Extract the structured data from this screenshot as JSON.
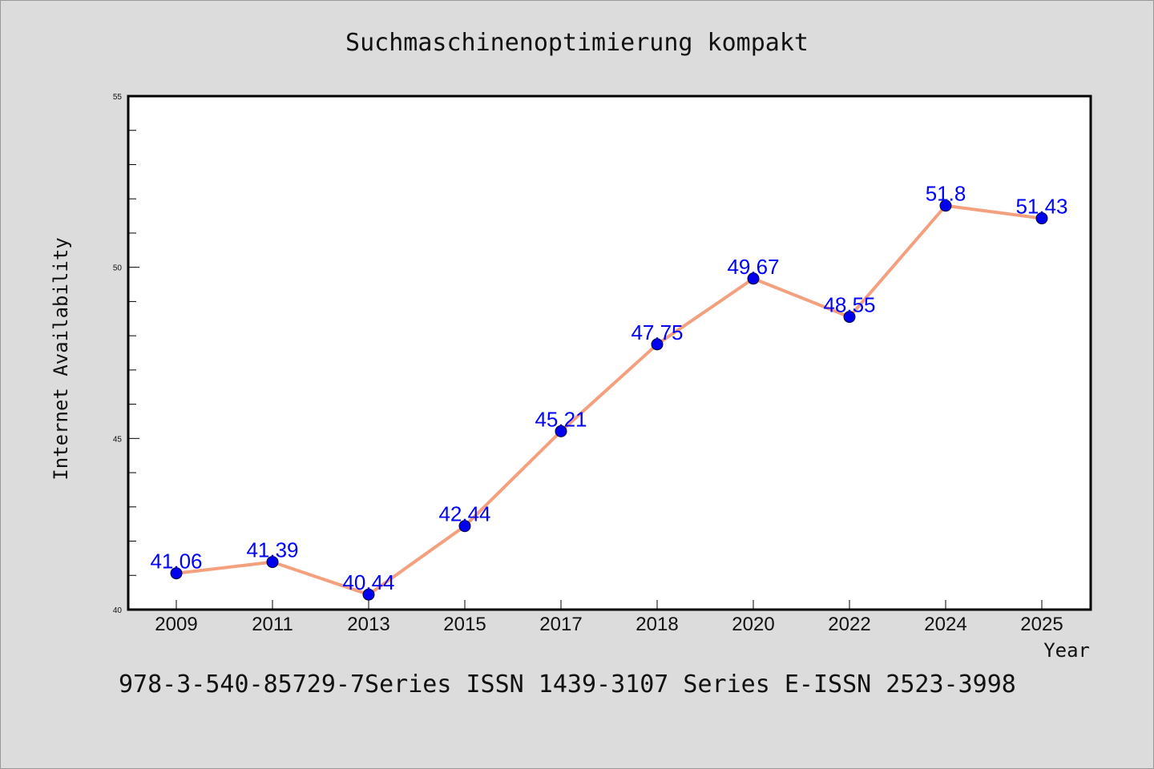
{
  "chart_data": {
    "type": "line",
    "title": "Suchmaschinenoptimierung kompakt",
    "xlabel": "Year",
    "ylabel": "Internet Availability",
    "categories": [
      "2009",
      "2011",
      "2013",
      "2015",
      "2017",
      "2018",
      "2020",
      "2022",
      "2024",
      "2025"
    ],
    "series": [
      {
        "values": [
          41.06,
          41.39,
          40.44,
          42.44,
          45.21,
          47.75,
          49.67,
          48.55,
          51.8,
          51.43
        ],
        "labels": [
          "41.06",
          "41.39",
          "40.44",
          "42.44",
          "45.21",
          "47.75",
          "49.67",
          "48.55",
          "51.8",
          "51.43"
        ]
      }
    ],
    "ylim": [
      40,
      55
    ],
    "yticks": [
      "40",
      "45",
      "50",
      "55"
    ],
    "grid": false,
    "colors": {
      "line": "#f4a07f",
      "marker": "#0000ee",
      "label": "#0000ff",
      "background": "#dcdcdc",
      "plot_background": "#ffffff"
    }
  },
  "footer": {
    "text": "978-3-540-85729-7Series ISSN 1439-3107 Series E-ISSN 2523-3998"
  }
}
